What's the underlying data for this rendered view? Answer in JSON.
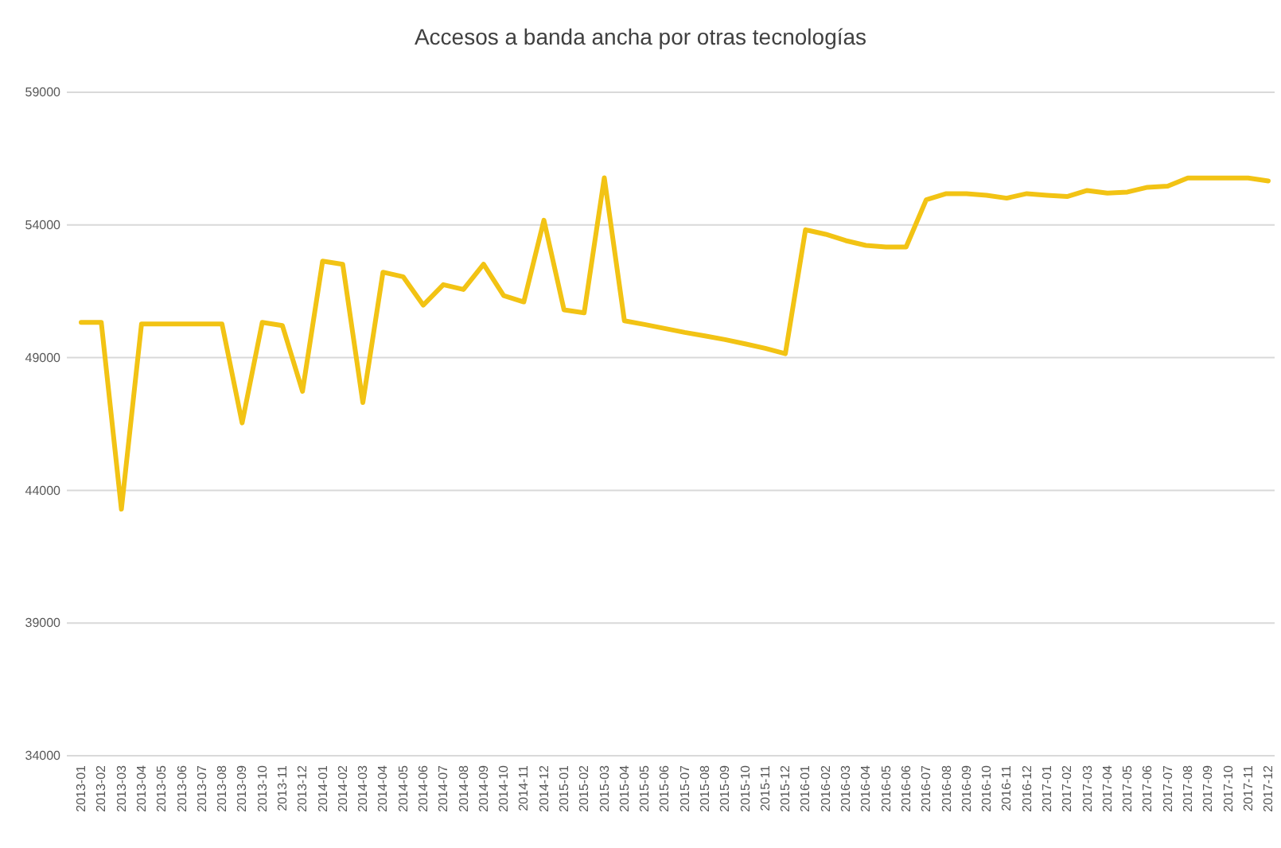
{
  "chart_data": {
    "type": "line",
    "title": "Accesos a banda ancha por otras tecnologías",
    "categories": [
      "2013-01",
      "2013-02",
      "2013-03",
      "2013-04",
      "2013-05",
      "2013-06",
      "2013-07",
      "2013-08",
      "2013-09",
      "2013-10",
      "2013-11",
      "2013-12",
      "2014-01",
      "2014-02",
      "2014-03",
      "2014-04",
      "2014-05",
      "2014-06",
      "2014-07",
      "2014-08",
      "2014-09",
      "2014-10",
      "2014-11",
      "2014-12",
      "2015-01",
      "2015-02",
      "2015-03",
      "2015-04",
      "2015-05",
      "2015-06",
      "2015-07",
      "2015-08",
      "2015-09",
      "2015-10",
      "2015-11",
      "2015-12",
      "2016-01",
      "2016-02",
      "2016-03",
      "2016-04",
      "2016-05",
      "2016-06",
      "2016-07",
      "2016-08",
      "2016-09",
      "2016-10",
      "2016-11",
      "2016-12",
      "2017-01",
      "2017-02",
      "2017-03",
      "2017-04",
      "2017-05",
      "2017-06",
      "2017-07",
      "2017-08",
      "2017-09",
      "2017-10",
      "2017-11",
      "2017-12"
    ],
    "series": [
      {
        "color": "#f2c314",
        "values": [
          50330,
          50330,
          43290,
          50270,
          50270,
          50270,
          50270,
          50270,
          46540,
          50330,
          50210,
          47730,
          52640,
          52520,
          47310,
          52220,
          52050,
          50980,
          51750,
          51570,
          52520,
          51340,
          51100,
          54180,
          50800,
          50690,
          55780,
          50390,
          50250,
          50100,
          49950,
          49820,
          49680,
          49520,
          49350,
          49150,
          53820,
          53650,
          53410,
          53230,
          53170,
          53170,
          54950,
          55180,
          55180,
          55120,
          55010,
          55180,
          55120,
          55070,
          55300,
          55200,
          55240,
          55420,
          55460,
          55770,
          55770,
          55770,
          55770,
          55660
        ]
      }
    ],
    "ylim": [
      34000,
      59000
    ],
    "yticks": [
      34000,
      39000,
      44000,
      49000,
      54000,
      59000
    ],
    "grid": "y",
    "marker": "none",
    "line_style": "solid"
  }
}
